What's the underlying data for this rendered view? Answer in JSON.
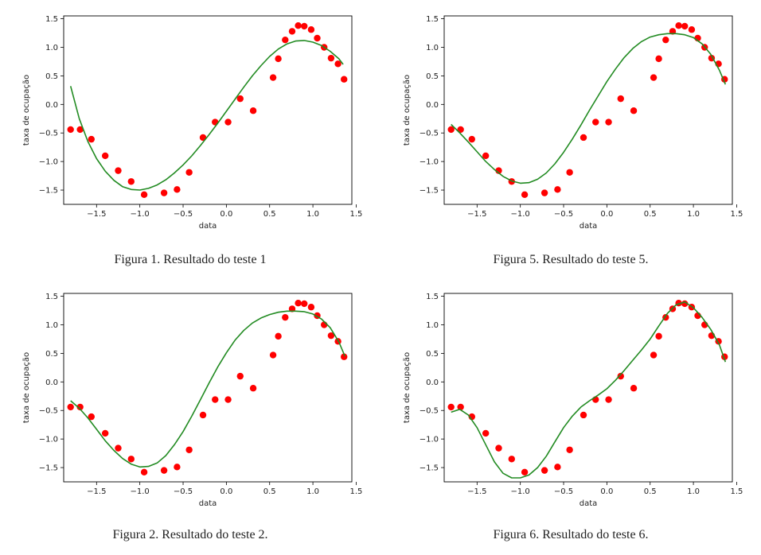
{
  "figures": [
    {
      "caption": "Figura 1. Resultado do teste 1"
    },
    {
      "caption": "Figura 5. Resultado do teste 5."
    },
    {
      "caption": "Figura 2. Resultado do teste 2."
    },
    {
      "caption": "Figura 6. Resultado do teste 6."
    }
  ],
  "colors": {
    "points": "#ff0000",
    "fit": "#228b22"
  },
  "chart_data": [
    {
      "type": "scatter",
      "title": "",
      "xlabel": "data",
      "ylabel": "taxa de ocupação",
      "xlim": [
        -1.88,
        1.45
      ],
      "ylim": [
        -1.75,
        1.55
      ],
      "xticks": [
        -1.5,
        -1.0,
        -0.5,
        0.0,
        0.5,
        1.0,
        1.5
      ],
      "xtick_labels": [
        "−1.5",
        "−1.0",
        "−0.5",
        "0.0",
        "0.5",
        "1.0",
        "1.5"
      ],
      "yticks": [
        -1.5,
        -1.0,
        -0.5,
        0.0,
        0.5,
        1.0,
        1.5
      ],
      "ytick_labels": [
        "−1.5",
        "−1.0",
        "−0.5",
        "0.0",
        "0.5",
        "1.0",
        "1.5"
      ],
      "grid": false,
      "series": [
        {
          "kind": "scatter",
          "color": "#ff0000",
          "x": [
            -1.8,
            -1.69,
            -1.56,
            -1.4,
            -1.25,
            -1.1,
            -0.95,
            -0.72,
            -0.57,
            -0.43,
            -0.27,
            -0.13,
            0.02,
            0.16,
            0.31,
            0.54,
            0.6,
            0.68,
            0.76,
            0.83,
            0.9,
            0.98,
            1.05,
            1.13,
            1.21,
            1.29,
            1.36
          ],
          "y": [
            -0.44,
            -0.44,
            -0.61,
            -0.9,
            -1.16,
            -1.35,
            -1.58,
            -1.55,
            -1.49,
            -1.19,
            -0.58,
            -0.31,
            -0.31,
            0.1,
            -0.11,
            0.47,
            0.8,
            1.13,
            1.28,
            1.38,
            1.37,
            1.31,
            1.16,
            1.0,
            0.81,
            0.71,
            0.44
          ]
        },
        {
          "kind": "line",
          "color": "#228b22",
          "x": [
            -1.8,
            -1.7,
            -1.6,
            -1.5,
            -1.4,
            -1.3,
            -1.2,
            -1.1,
            -1.0,
            -0.9,
            -0.8,
            -0.7,
            -0.6,
            -0.5,
            -0.4,
            -0.3,
            -0.2,
            -0.1,
            0.0,
            0.1,
            0.2,
            0.3,
            0.4,
            0.5,
            0.6,
            0.7,
            0.8,
            0.9,
            1.0,
            1.1,
            1.2,
            1.3,
            1.35
          ],
          "y": [
            0.32,
            -0.25,
            -0.65,
            -0.95,
            -1.17,
            -1.33,
            -1.44,
            -1.49,
            -1.5,
            -1.47,
            -1.41,
            -1.32,
            -1.2,
            -1.06,
            -0.9,
            -0.72,
            -0.53,
            -0.33,
            -0.12,
            0.09,
            0.3,
            0.5,
            0.68,
            0.84,
            0.97,
            1.06,
            1.11,
            1.12,
            1.09,
            1.03,
            0.93,
            0.8,
            0.7
          ]
        }
      ]
    },
    {
      "type": "scatter",
      "title": "",
      "xlabel": "data",
      "ylabel": "taxa de ocupação",
      "xlim": [
        -1.88,
        1.45
      ],
      "ylim": [
        -1.75,
        1.55
      ],
      "xticks": [
        -1.5,
        -1.0,
        -0.5,
        0.0,
        0.5,
        1.0,
        1.5
      ],
      "xtick_labels": [
        "−1.5",
        "−1.0",
        "−0.5",
        "0.0",
        "0.5",
        "1.0",
        "1.5"
      ],
      "yticks": [
        -1.5,
        -1.0,
        -0.5,
        0.0,
        0.5,
        1.0,
        1.5
      ],
      "ytick_labels": [
        "−1.5",
        "−1.0",
        "−0.5",
        "0.0",
        "0.5",
        "1.0",
        "1.5"
      ],
      "grid": false,
      "series": [
        {
          "kind": "scatter",
          "color": "#ff0000",
          "x": [
            -1.8,
            -1.69,
            -1.56,
            -1.4,
            -1.25,
            -1.1,
            -0.95,
            -0.72,
            -0.57,
            -0.43,
            -0.27,
            -0.13,
            0.02,
            0.16,
            0.31,
            0.54,
            0.6,
            0.68,
            0.76,
            0.83,
            0.9,
            0.98,
            1.05,
            1.13,
            1.21,
            1.29,
            1.36
          ],
          "y": [
            -0.44,
            -0.44,
            -0.61,
            -0.9,
            -1.16,
            -1.35,
            -1.58,
            -1.55,
            -1.49,
            -1.19,
            -0.58,
            -0.31,
            -0.31,
            0.1,
            -0.11,
            0.47,
            0.8,
            1.13,
            1.28,
            1.38,
            1.37,
            1.31,
            1.16,
            1.0,
            0.81,
            0.71,
            0.44
          ]
        },
        {
          "kind": "line",
          "color": "#228b22",
          "x": [
            -1.8,
            -1.7,
            -1.6,
            -1.5,
            -1.4,
            -1.3,
            -1.2,
            -1.1,
            -1.0,
            -0.9,
            -0.8,
            -0.7,
            -0.6,
            -0.5,
            -0.4,
            -0.3,
            -0.2,
            -0.1,
            0.0,
            0.1,
            0.2,
            0.3,
            0.4,
            0.5,
            0.6,
            0.7,
            0.8,
            0.9,
            1.0,
            1.1,
            1.2,
            1.3,
            1.37
          ],
          "y": [
            -0.35,
            -0.5,
            -0.66,
            -0.83,
            -1.0,
            -1.14,
            -1.26,
            -1.34,
            -1.38,
            -1.37,
            -1.31,
            -1.2,
            -1.04,
            -0.84,
            -0.61,
            -0.36,
            -0.1,
            0.15,
            0.4,
            0.62,
            0.82,
            0.98,
            1.1,
            1.18,
            1.22,
            1.24,
            1.24,
            1.22,
            1.17,
            1.06,
            0.88,
            0.6,
            0.35
          ]
        }
      ]
    },
    {
      "type": "scatter",
      "title": "",
      "xlabel": "data",
      "ylabel": "taxa de ocupação",
      "xlim": [
        -1.88,
        1.45
      ],
      "ylim": [
        -1.75,
        1.55
      ],
      "xticks": [
        -1.5,
        -1.0,
        -0.5,
        0.0,
        0.5,
        1.0,
        1.5
      ],
      "xtick_labels": [
        "−1.5",
        "−1.0",
        "−0.5",
        "0.0",
        "0.5",
        "1.0",
        "1.5"
      ],
      "yticks": [
        -1.5,
        -1.0,
        -0.5,
        0.0,
        0.5,
        1.0,
        1.5
      ],
      "ytick_labels": [
        "−1.5",
        "−1.0",
        "−0.5",
        "0.0",
        "0.5",
        "1.0",
        "1.5"
      ],
      "grid": false,
      "series": [
        {
          "kind": "scatter",
          "color": "#ff0000",
          "x": [
            -1.8,
            -1.69,
            -1.56,
            -1.4,
            -1.25,
            -1.1,
            -0.95,
            -0.72,
            -0.57,
            -0.43,
            -0.27,
            -0.13,
            0.02,
            0.16,
            0.31,
            0.54,
            0.6,
            0.68,
            0.76,
            0.83,
            0.9,
            0.98,
            1.05,
            1.13,
            1.21,
            1.29,
            1.36
          ],
          "y": [
            -0.44,
            -0.44,
            -0.61,
            -0.9,
            -1.16,
            -1.35,
            -1.58,
            -1.55,
            -1.49,
            -1.19,
            -0.58,
            -0.31,
            -0.31,
            0.1,
            -0.11,
            0.47,
            0.8,
            1.13,
            1.28,
            1.38,
            1.37,
            1.31,
            1.16,
            1.0,
            0.81,
            0.71,
            0.44
          ]
        },
        {
          "kind": "line",
          "color": "#228b22",
          "x": [
            -1.8,
            -1.7,
            -1.6,
            -1.5,
            -1.4,
            -1.3,
            -1.2,
            -1.1,
            -1.0,
            -0.9,
            -0.8,
            -0.7,
            -0.6,
            -0.5,
            -0.4,
            -0.3,
            -0.2,
            -0.1,
            0.0,
            0.1,
            0.2,
            0.3,
            0.4,
            0.5,
            0.6,
            0.7,
            0.8,
            0.9,
            1.0,
            1.1,
            1.2,
            1.3,
            1.37
          ],
          "y": [
            -0.33,
            -0.46,
            -0.63,
            -0.83,
            -1.03,
            -1.2,
            -1.34,
            -1.44,
            -1.49,
            -1.48,
            -1.42,
            -1.29,
            -1.1,
            -0.87,
            -0.6,
            -0.31,
            -0.02,
            0.26,
            0.51,
            0.73,
            0.9,
            1.03,
            1.12,
            1.18,
            1.22,
            1.24,
            1.24,
            1.23,
            1.19,
            1.1,
            0.95,
            0.7,
            0.45
          ]
        }
      ]
    },
    {
      "type": "scatter",
      "title": "",
      "xlabel": "data",
      "ylabel": "taxa de ocupação",
      "xlim": [
        -1.88,
        1.45
      ],
      "ylim": [
        -1.75,
        1.55
      ],
      "xticks": [
        -1.5,
        -1.0,
        -0.5,
        0.0,
        0.5,
        1.0,
        1.5
      ],
      "xtick_labels": [
        "−1.5",
        "−1.0",
        "−0.5",
        "0.0",
        "0.5",
        "1.0",
        "1.5"
      ],
      "yticks": [
        -1.5,
        -1.0,
        -0.5,
        0.0,
        0.5,
        1.0,
        1.5
      ],
      "ytick_labels": [
        "−1.5",
        "−1.0",
        "−0.5",
        "0.0",
        "0.5",
        "1.0",
        "1.5"
      ],
      "grid": false,
      "series": [
        {
          "kind": "scatter",
          "color": "#ff0000",
          "x": [
            -1.8,
            -1.69,
            -1.56,
            -1.4,
            -1.25,
            -1.1,
            -0.95,
            -0.72,
            -0.57,
            -0.43,
            -0.27,
            -0.13,
            0.02,
            0.16,
            0.31,
            0.54,
            0.6,
            0.68,
            0.76,
            0.83,
            0.9,
            0.98,
            1.05,
            1.13,
            1.21,
            1.29,
            1.36
          ],
          "y": [
            -0.44,
            -0.44,
            -0.61,
            -0.9,
            -1.16,
            -1.35,
            -1.58,
            -1.55,
            -1.49,
            -1.19,
            -0.58,
            -0.31,
            -0.31,
            0.1,
            -0.11,
            0.47,
            0.8,
            1.13,
            1.28,
            1.38,
            1.37,
            1.31,
            1.16,
            1.0,
            0.81,
            0.71,
            0.44
          ]
        },
        {
          "kind": "line",
          "color": "#228b22",
          "x": [
            -1.8,
            -1.7,
            -1.6,
            -1.5,
            -1.4,
            -1.3,
            -1.2,
            -1.1,
            -1.0,
            -0.9,
            -0.8,
            -0.7,
            -0.6,
            -0.5,
            -0.4,
            -0.3,
            -0.2,
            -0.1,
            0.0,
            0.1,
            0.2,
            0.3,
            0.4,
            0.5,
            0.6,
            0.7,
            0.8,
            0.9,
            1.0,
            1.1,
            1.2,
            1.3,
            1.37
          ],
          "y": [
            -0.53,
            -0.48,
            -0.58,
            -0.8,
            -1.1,
            -1.4,
            -1.6,
            -1.68,
            -1.68,
            -1.63,
            -1.5,
            -1.3,
            -1.05,
            -0.8,
            -0.6,
            -0.44,
            -0.33,
            -0.23,
            -0.12,
            0.03,
            0.2,
            0.38,
            0.56,
            0.75,
            0.98,
            1.2,
            1.35,
            1.4,
            1.3,
            1.13,
            0.92,
            0.65,
            0.35
          ]
        }
      ]
    }
  ]
}
